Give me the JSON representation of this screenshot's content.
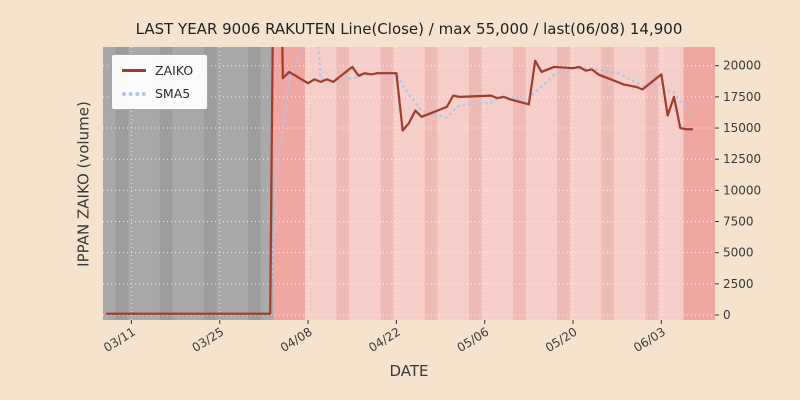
{
  "chart_data": {
    "type": "line",
    "title": "LAST YEAR 9006 RAKUTEN Line(Close) / max 55,000 / last(06/08) 14,900",
    "xlabel": "DATE",
    "ylabel": "IPPAN ZAIKO (volume)",
    "legend_position": "upper-left",
    "x_ticks": [
      "03/11",
      "03/25",
      "04/08",
      "04/22",
      "05/06",
      "05/20",
      "06/03"
    ],
    "y_ticks": [
      0,
      2500,
      5000,
      7500,
      10000,
      12500,
      15000,
      17500,
      20000
    ],
    "ylim": [
      -400,
      21500
    ],
    "x_range_doy": [
      65.5,
      162.5
    ],
    "series": [
      {
        "name": "ZAIKO",
        "style": "solid",
        "dates": [
          "03/07",
          "03/08",
          "03/11",
          "03/12",
          "03/13",
          "03/14",
          "03/15",
          "03/18",
          "03/19",
          "03/21",
          "03/22",
          "03/25",
          "03/26",
          "03/27",
          "03/28",
          "03/29",
          "04/01",
          "04/02",
          "04/03",
          "04/04",
          "04/05",
          "04/08",
          "04/09",
          "04/10",
          "04/11",
          "04/12",
          "04/15",
          "04/16",
          "04/17",
          "04/18",
          "04/19",
          "04/22",
          "04/23",
          "04/24",
          "04/25",
          "04/26",
          "04/30",
          "05/01",
          "05/02",
          "05/07",
          "05/08",
          "05/09",
          "05/10",
          "05/13",
          "05/14",
          "05/15",
          "05/16",
          "05/17",
          "05/20",
          "05/21",
          "05/22",
          "05/23",
          "05/24",
          "05/27",
          "05/28",
          "05/29",
          "05/30",
          "05/31",
          "06/03",
          "06/04",
          "06/05",
          "06/06",
          "06/07",
          "06/08"
        ],
        "values": [
          100,
          100,
          100,
          100,
          100,
          100,
          100,
          100,
          100,
          100,
          100,
          100,
          100,
          100,
          100,
          100,
          100,
          100,
          55000,
          19000,
          19500,
          18600,
          18900,
          18700,
          18900,
          18700,
          19900,
          19200,
          19400,
          19300,
          19400,
          19400,
          14800,
          15400,
          16400,
          15900,
          16700,
          17600,
          17500,
          17600,
          17400,
          17500,
          17300,
          16900,
          20400,
          19500,
          19700,
          19900,
          19800,
          19900,
          19600,
          19700,
          19300,
          18700,
          18500,
          18400,
          18300,
          18100,
          19300,
          16000,
          17500,
          15000,
          14900,
          14900
        ]
      },
      {
        "name": "SMA5",
        "style": "dotted",
        "window": 5,
        "derived_from": "ZAIKO"
      }
    ],
    "weekend_saturdays": [
      "03/09",
      "03/16",
      "03/23",
      "03/30",
      "04/06",
      "04/13",
      "04/20",
      "04/27",
      "05/04",
      "05/11",
      "05/18",
      "05/25",
      "06/01",
      "06/08"
    ],
    "gray_region": {
      "from": "03/06",
      "to": "04/02"
    },
    "highlight_bands": [
      {
        "from": "04/03",
        "to": "04/07"
      },
      {
        "from": "06/07",
        "to": "06/12"
      }
    ],
    "colors": {
      "figure_bg": "#f6e3cd",
      "plot_bg": "#f5cdc9",
      "weekend_stripe": "#edbab6",
      "gray_bg": "#a9a9a9",
      "gray_weekend_stripe": "#9d9d9d",
      "band": "#f0a7a1",
      "zaiko": "#9f3c2c",
      "sma5": "#aec7e8",
      "grid": "#ffffff"
    }
  }
}
